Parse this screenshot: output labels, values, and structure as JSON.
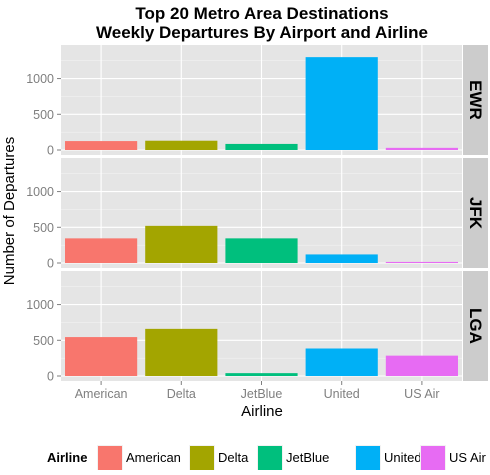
{
  "chart_data": {
    "type": "bar",
    "title_lines": [
      "Top 20 Metro Area Destinations",
      "Weekly Departures By Airport and Airline"
    ],
    "xlabel": "Airline",
    "ylabel": "Number of Departures",
    "categories": [
      "American",
      "Delta",
      "JetBlue",
      "United",
      "US Air"
    ],
    "ylim": [
      0,
      1400
    ],
    "yticks": [
      0,
      500,
      1000
    ],
    "grid": true,
    "legend_position": "bottom",
    "legend_title": "Airline",
    "colors": {
      "American": "#F8766D",
      "Delta": "#A3A500",
      "JetBlue": "#00BF7D",
      "United": "#00B0F6",
      "US Air": "#E76BF3"
    },
    "panels": [
      {
        "name": "EWR",
        "values": [
          125,
          130,
          85,
          1300,
          30
        ]
      },
      {
        "name": "JFK",
        "values": [
          345,
          520,
          345,
          120,
          15
        ]
      },
      {
        "name": "LGA",
        "values": [
          545,
          660,
          40,
          385,
          285
        ]
      }
    ]
  }
}
